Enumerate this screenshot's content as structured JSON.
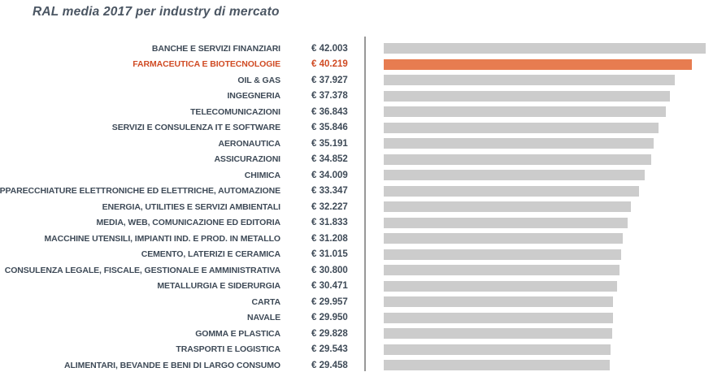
{
  "title": "RAL media 2017 per industry di mercato",
  "chart_data": {
    "type": "bar",
    "orientation": "horizontal",
    "title": "RAL media 2017 per industry di mercato",
    "currency": "€",
    "categories": [
      "BANCHE E SERVIZI FINANZIARI",
      "FARMACEUTICA E BIOTECNOLOGIE",
      "OIL & GAS",
      "INGEGNERIA",
      "TELECOMUNICAZIONI",
      "SERVIZI E CONSULENZA IT E SOFTWARE",
      "AERONAUTICA",
      "ASSICURAZIONI",
      "CHIMICA",
      "APPARECCHIATURE ELETTRONICHE ED ELETTRICHE, AUTOMAZIONE",
      "ENERGIA, UTILITIES E SERVIZI AMBIENTALI",
      "MEDIA, WEB, COMUNICAZIONE ED EDITORIA",
      "MACCHINE UTENSILI, IMPIANTI IND. E PROD. IN METALLO",
      "CEMENTO, LATERIZI E CERAMICA",
      "CONSULENZA LEGALE, FISCALE, GESTIONALE E AMMINISTRATIVA",
      "METALLURGIA E SIDERURGIA",
      "CARTA",
      "NAVALE",
      "GOMMA E PLASTICA",
      "TRASPORTI E LOGISTICA",
      "ALIMENTARI, BEVANDE E BENI DI LARGO CONSUMO"
    ],
    "values": [
      42003,
      40219,
      37927,
      37378,
      36843,
      35846,
      35191,
      34852,
      34009,
      33347,
      32227,
      31833,
      31208,
      31015,
      30800,
      30471,
      29957,
      29950,
      29828,
      29543,
      29458
    ],
    "value_labels": [
      "€ 42.003",
      "€ 40.219",
      "€ 37.927",
      "€ 37.378",
      "€ 36.843",
      "€ 35.846",
      "€ 35.191",
      "€ 34.852",
      "€ 34.009",
      "€ 33.347",
      "€ 32.227",
      "€ 31.833",
      "€ 31.208",
      "€ 31.015",
      "€ 30.800",
      "€ 30.471",
      "€ 29.957",
      "€ 29.950",
      "€ 29.828",
      "€ 29.543",
      "€ 29.458"
    ],
    "highlight_index": 1,
    "bar_color": "#cccccc",
    "highlight_bar_color": "#e77c50",
    "highlight_text_color": "#d04b24",
    "text_color": "#3e4a57",
    "xlim": [
      0,
      42003
    ],
    "legend": "none",
    "grid": "off"
  }
}
